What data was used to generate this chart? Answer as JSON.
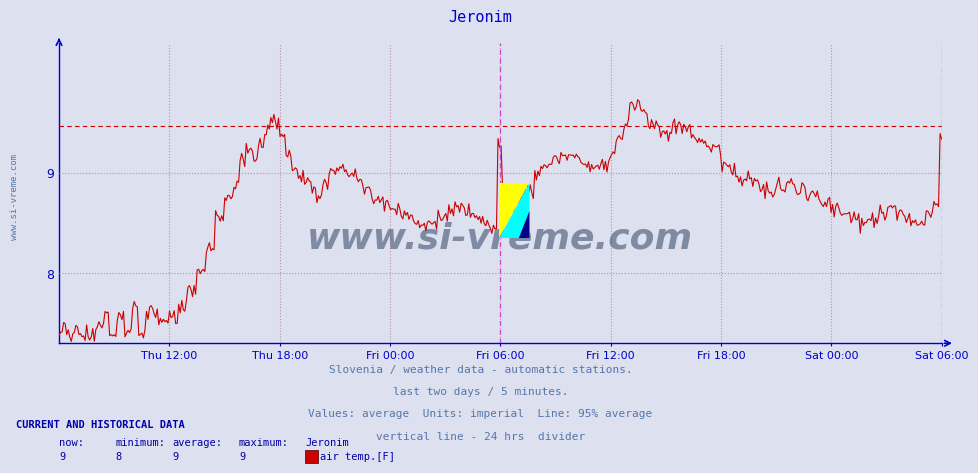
{
  "title": "Jeronim",
  "title_color": "#0000cc",
  "bg_color": "#dde0ee",
  "plot_bg_color": "#dde0ee",
  "line_color": "#cc0000",
  "axis_color": "#0000cc",
  "grid_color": "#cc88aa",
  "avg_line_color": "#cc0000",
  "avg_line_value": 9.47,
  "vertical_line_color": "#cc44cc",
  "y_min": 7.3,
  "y_max": 10.3,
  "y_ticks": [
    8,
    9
  ],
  "x_tick_labels": [
    "Thu 12:00",
    "Thu 18:00",
    "Fri 00:00",
    "Fri 06:00",
    "Fri 12:00",
    "Fri 18:00",
    "Sat 00:00",
    "Sat 06:00"
  ],
  "footer_lines": [
    "Slovenia / weather data - automatic stations.",
    "last two days / 5 minutes.",
    "Values: average  Units: imperial  Line: 95% average",
    "vertical line - 24 hrs  divider"
  ],
  "footer_color": "#5577aa",
  "bottom_label_color": "#0000aa",
  "current_data_label": "CURRENT AND HISTORICAL DATA",
  "stat_headers": [
    "now:",
    "minimum:",
    "average:",
    "maximum:",
    "Jeronim"
  ],
  "stat_values": [
    "9",
    "8",
    "9",
    "9"
  ],
  "legend_label": "air temp.[F]",
  "legend_color": "#cc0000",
  "watermark_text": "www.si-vreme.com",
  "watermark_color": "#334466",
  "left_label": "www.si-vreme.com"
}
